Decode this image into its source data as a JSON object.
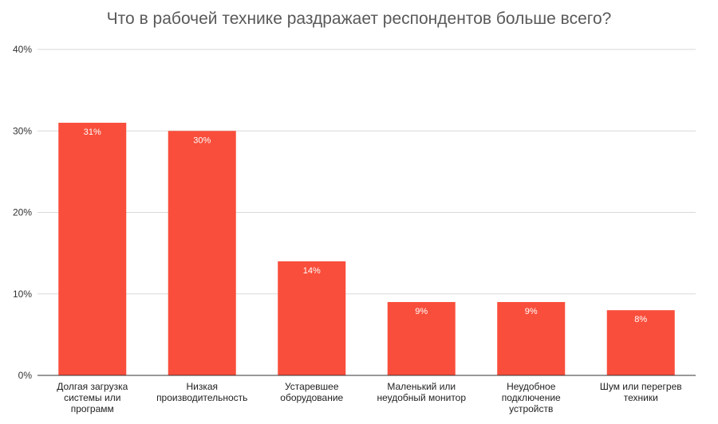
{
  "chart_data": {
    "type": "bar",
    "title": "Что в рабочей технике раздражает респондентов больше всего?",
    "categories": [
      [
        "Долгая загрузка",
        "системы или",
        "программ"
      ],
      [
        "Низкая",
        "производительность"
      ],
      [
        "Устаревшее",
        "оборудование"
      ],
      [
        "Маленький или",
        "неудобный монитор"
      ],
      [
        "Неудобное",
        "подключение",
        "устройств"
      ],
      [
        "Шум или перегрев",
        "техники"
      ]
    ],
    "values": [
      31,
      30,
      14,
      9,
      9,
      8
    ],
    "value_labels": [
      "31%",
      "30%",
      "14%",
      "9%",
      "9%",
      "8%"
    ],
    "y_ticks": [
      "0%",
      "10%",
      "20%",
      "30%",
      "40%"
    ],
    "y_tick_values": [
      0,
      10,
      20,
      30,
      40
    ],
    "ylim": [
      0,
      40
    ],
    "xlabel": "",
    "ylabel": "",
    "grid": true,
    "legend": "none",
    "bar_color": "#f94e3b",
    "grid_color": "#d9d9d9",
    "axis_color": "#333333"
  }
}
